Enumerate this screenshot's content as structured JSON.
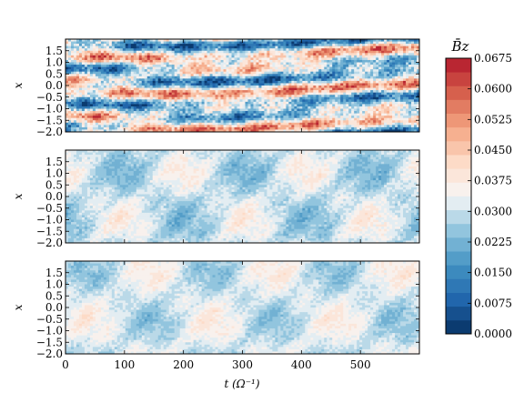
{
  "chart_data": {
    "type": "heatmap",
    "panels": [
      {
        "name": "panel-1",
        "ylabel": "x",
        "ylim": [
          -2.0,
          2.0
        ],
        "y_ticks": [
          "1.5",
          "1.0",
          "0.5",
          "0.0",
          "−0.5",
          "−1.0",
          "−1.5",
          "−2.0"
        ],
        "xlim": [
          0,
          600
        ],
        "description_values": {
          "typical_range": [
            0.0,
            0.0675
          ],
          "mean": 0.032
        },
        "show_x_tick_labels": false
      },
      {
        "name": "panel-2",
        "ylabel": "x",
        "ylim": [
          -2.0,
          2.0
        ],
        "y_ticks": [
          "1.5",
          "1.0",
          "0.5",
          "0.0",
          "−0.5",
          "−1.0",
          "−1.5",
          "−2.0"
        ],
        "xlim": [
          0,
          600
        ],
        "description_values": {
          "typical_range": [
            0.018,
            0.04
          ],
          "mean": 0.03
        },
        "show_x_tick_labels": false
      },
      {
        "name": "panel-3",
        "ylabel": "x",
        "ylim": [
          -2.0,
          2.0
        ],
        "y_ticks": [
          "1.5",
          "1.0",
          "0.5",
          "0.0",
          "−0.5",
          "−1.0",
          "−1.5",
          "−2.0"
        ],
        "xlim": [
          0,
          600
        ],
        "description_values": {
          "typical_range": [
            0.02,
            0.04
          ],
          "mean": 0.031
        },
        "show_x_tick_labels": true
      }
    ],
    "x_ticks": [
      "0",
      "100",
      "200",
      "300",
      "400",
      "500"
    ],
    "x_tick_values": [
      0,
      100,
      200,
      300,
      400,
      500
    ],
    "xlabel": "t (Ω⁻¹)",
    "colorbar": {
      "title": "B̄z",
      "min": 0.0,
      "max": 0.0675,
      "ticks": [
        "0.0000",
        "0.0075",
        "0.0150",
        "0.0225",
        "0.0300",
        "0.0375",
        "0.0450",
        "0.0525",
        "0.0600",
        "0.0675"
      ],
      "colormap": "RdBu_r",
      "levels": 20
    }
  }
}
